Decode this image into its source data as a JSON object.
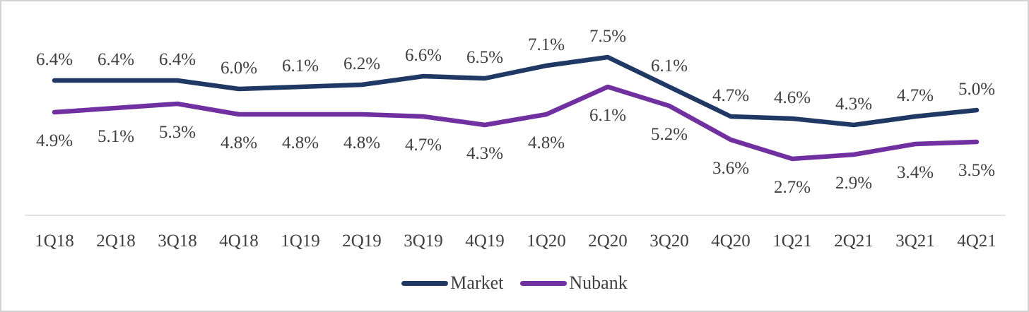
{
  "chart_data": {
    "type": "line",
    "title": "",
    "xlabel": "",
    "ylabel": "",
    "value_format": "percent_one_decimal",
    "grid": false,
    "legend_position": "bottom-center",
    "axis_line_color": "#d9d9d9",
    "label_text_color": "#3f3f3f",
    "categories": [
      "1Q18",
      "2Q18",
      "3Q18",
      "4Q18",
      "1Q19",
      "2Q19",
      "3Q19",
      "4Q19",
      "1Q20",
      "2Q20",
      "3Q20",
      "4Q20",
      "1Q21",
      "2Q21",
      "3Q21",
      "4Q21"
    ],
    "series": [
      {
        "name": "Market",
        "color": "#1f3864",
        "data_label_position": "above",
        "values": [
          6.4,
          6.4,
          6.4,
          6.0,
          6.1,
          6.2,
          6.6,
          6.5,
          7.1,
          7.5,
          6.1,
          4.7,
          4.6,
          4.3,
          4.7,
          5.0
        ]
      },
      {
        "name": "Nubank",
        "color": "#7030a0",
        "data_label_position": "below",
        "values": [
          4.9,
          5.1,
          5.3,
          4.8,
          4.8,
          4.8,
          4.7,
          4.3,
          4.8,
          6.1,
          5.2,
          3.6,
          2.7,
          2.9,
          3.4,
          3.5
        ]
      }
    ],
    "y_range_implied": [
      2.7,
      7.5
    ]
  },
  "legend": {
    "items": [
      {
        "label": "Market",
        "color": "#1f3864"
      },
      {
        "label": "Nubank",
        "color": "#7030a0"
      }
    ]
  }
}
